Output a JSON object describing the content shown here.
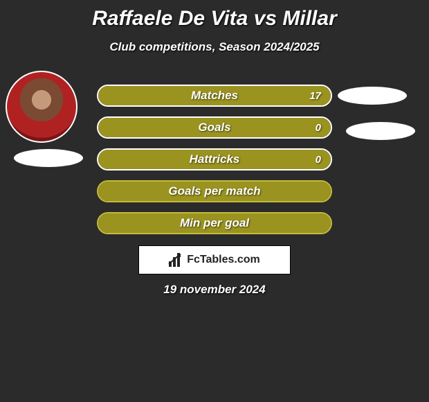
{
  "title": "Raffaele De Vita vs Millar",
  "subtitle": "Club competitions, Season 2024/2025",
  "date": "19 november 2024",
  "logo_text": "FcTables.com",
  "background_color": "#2b2b2b",
  "text_color": "#ffffff",
  "stats": [
    {
      "label": "Matches",
      "value": "17",
      "fill_pct": 100,
      "fill_color": "#9a931f",
      "border_color": "#ffffff"
    },
    {
      "label": "Goals",
      "value": "0",
      "fill_pct": 100,
      "fill_color": "#9a931f",
      "border_color": "#ffffff"
    },
    {
      "label": "Hattricks",
      "value": "0",
      "fill_pct": 100,
      "fill_color": "#9a931f",
      "border_color": "#ffffff"
    },
    {
      "label": "Goals per match",
      "value": "",
      "fill_pct": 100,
      "fill_color": "#9a931f",
      "border_color": "#c3bb3d"
    },
    {
      "label": "Min per goal",
      "value": "",
      "fill_pct": 100,
      "fill_color": "#9a931f",
      "border_color": "#c3bb3d"
    }
  ]
}
